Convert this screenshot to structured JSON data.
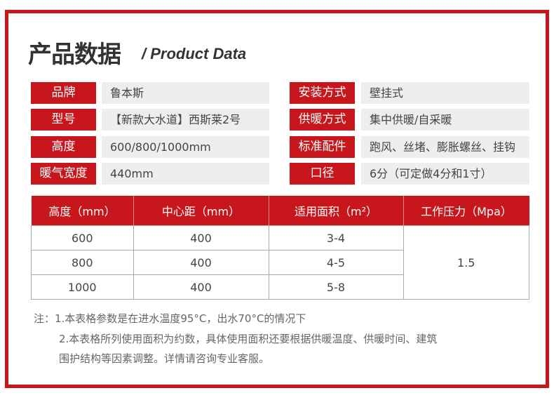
{
  "header": {
    "title": "产品数据",
    "subtitle": "/ Product Data"
  },
  "specs_left": [
    {
      "label": "品牌",
      "value": "鲁本斯"
    },
    {
      "label": "型号",
      "value": "【新款大水道】西斯莱2号"
    },
    {
      "label": "高度",
      "value": "600/800/1000mm"
    },
    {
      "label": "暖气宽度",
      "value": "440mm"
    }
  ],
  "specs_right": [
    {
      "label": "安装方式",
      "value": "壁挂式"
    },
    {
      "label": "供暖方式",
      "value": "集中供暖/自采暖"
    },
    {
      "label": "标准配件",
      "value": "跑风、丝堵、膨胀螺丝、挂钩"
    },
    {
      "label": "口径",
      "value": "6分（可定做4分和1寸）"
    }
  ],
  "table": {
    "headers": [
      "高度（mm）",
      "中心距（mm）",
      "适用面积（m²）",
      "工作压力（Mpa）"
    ],
    "rows": [
      [
        "600",
        "400",
        "3-4"
      ],
      [
        "800",
        "400",
        "4-5"
      ],
      [
        "1000",
        "400",
        "5-8"
      ]
    ],
    "pressure": "1.5"
  },
  "notes": [
    "注：1.本表格参数是在进水温度95°C，出水70°C的情况下",
    "2.本表格所列使用面积为约数，具体使用面积还要根据供暖温度、供暖时间、建筑",
    "围护结构等因素调整。详情请咨询专业客服。"
  ],
  "colors": {
    "accent": "#c8161d",
    "value_bg": "#eeeeee"
  }
}
